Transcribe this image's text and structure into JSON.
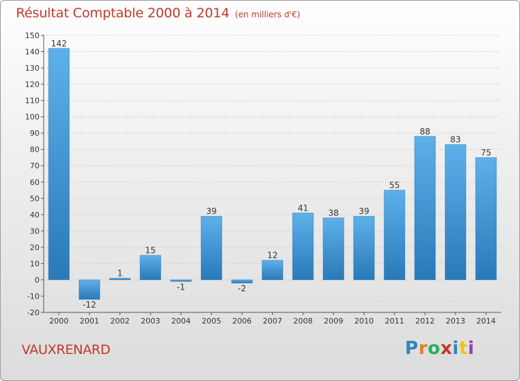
{
  "header": {
    "title": "Résultat Comptable 2000 à 2014",
    "unit": "(en milliers d'€)"
  },
  "footer": {
    "town": "VAUXRENARD",
    "brand": "Proxiti",
    "brand_colors": [
      "#2e86c1",
      "#e67e22",
      "#27ae60",
      "#c0392b",
      "#2e86c1",
      "#f1c40f",
      "#8e44ad"
    ]
  },
  "chart_data": {
    "type": "bar",
    "title": "Résultat Comptable 2000 à 2014",
    "subtitle": "(en milliers d'€)",
    "xlabel": "",
    "ylabel": "",
    "categories": [
      "2000",
      "2001",
      "2002",
      "2003",
      "2004",
      "2005",
      "2006",
      "2007",
      "2008",
      "2009",
      "2010",
      "2011",
      "2012",
      "2013",
      "2014"
    ],
    "values": [
      142,
      -12,
      1,
      15,
      -1,
      39,
      -2,
      12,
      41,
      38,
      39,
      55,
      88,
      83,
      75
    ],
    "ylim": [
      -20,
      150
    ],
    "yticks": [
      -20,
      -10,
      0,
      10,
      20,
      30,
      40,
      50,
      60,
      70,
      80,
      90,
      100,
      110,
      120,
      130,
      140,
      150
    ],
    "grid": true,
    "legend": "none",
    "colors": {
      "bar": "#3a92d4",
      "bar_light": "#5eb0ea",
      "bar_dark": "#2979b8",
      "grid": "#cfcfcf",
      "text": "#333333"
    }
  }
}
